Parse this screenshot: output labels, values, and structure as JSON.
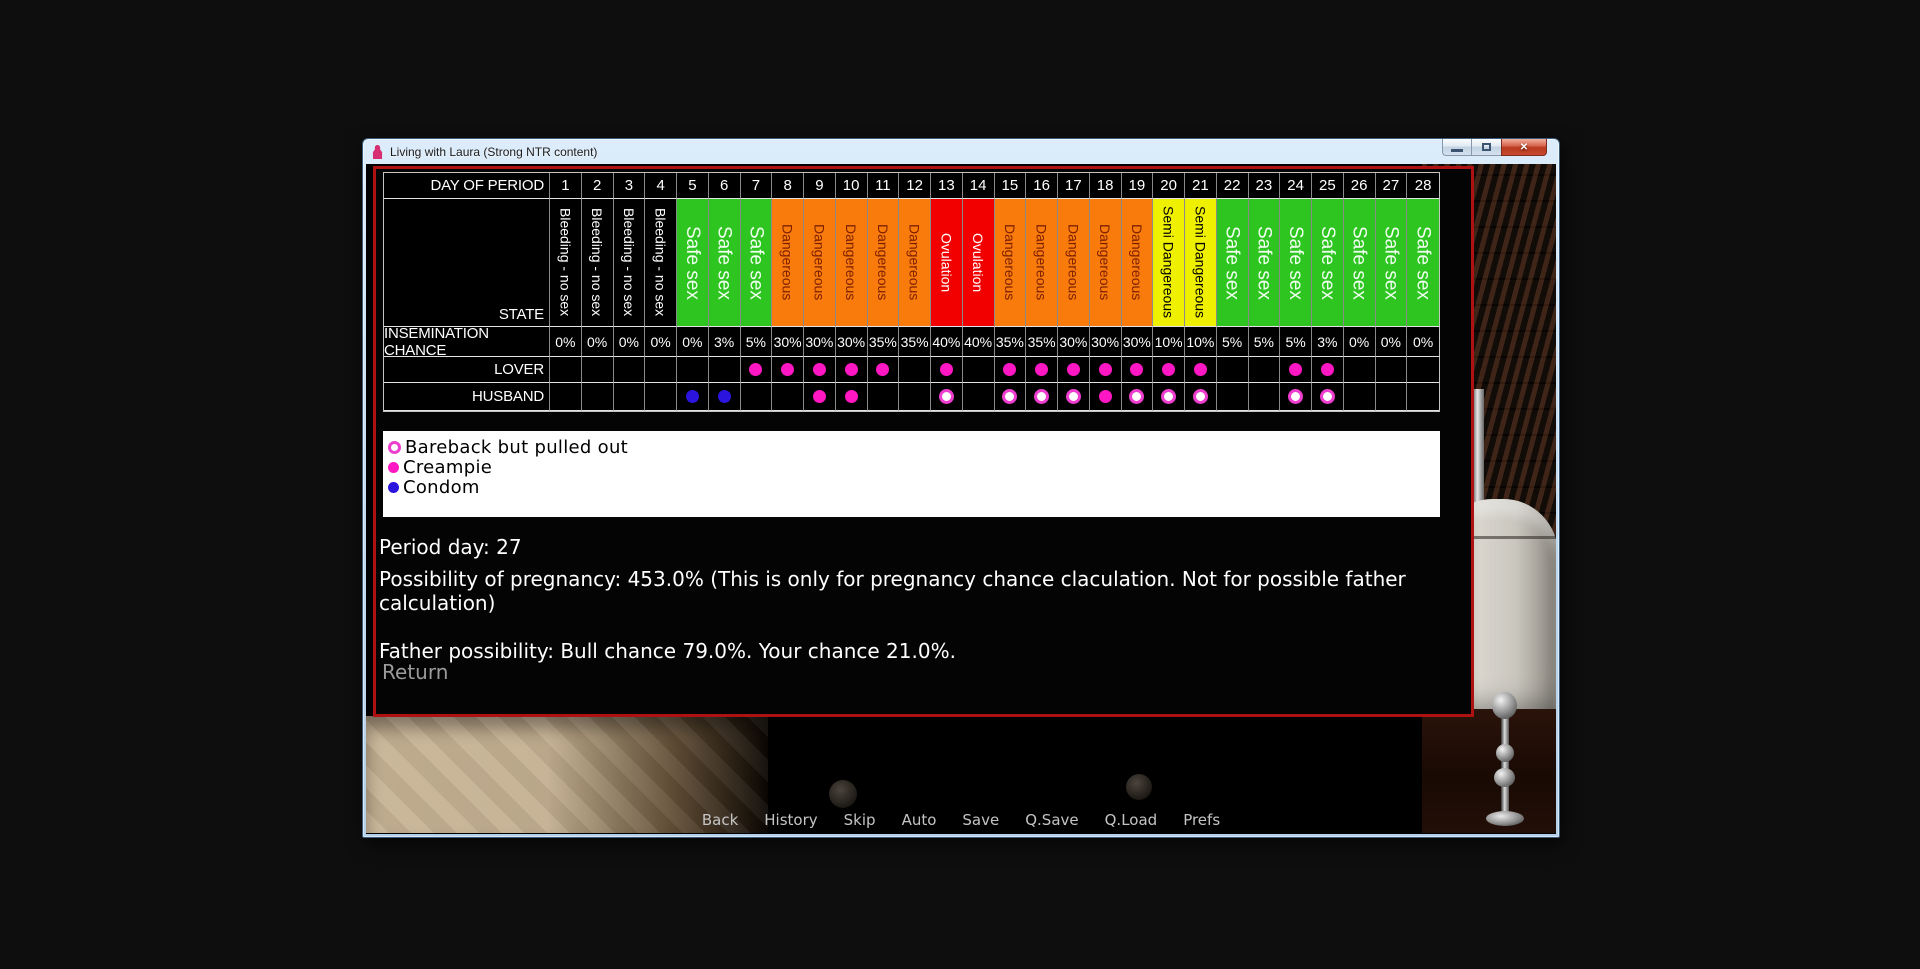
{
  "window": {
    "title": "Living with Laura (Strong NTR content)"
  },
  "chart_data": {
    "type": "table",
    "header_label": "DAY OF PERIOD",
    "days": [
      "1",
      "2",
      "3",
      "4",
      "5",
      "6",
      "7",
      "8",
      "9",
      "10",
      "11",
      "12",
      "13",
      "14",
      "15",
      "16",
      "17",
      "18",
      "19",
      "20",
      "21",
      "22",
      "23",
      "24",
      "25",
      "26",
      "27",
      "28"
    ],
    "row_labels": {
      "state": "STATE",
      "insemination": "INSEMINATION CHANCE",
      "lover": "LOVER",
      "husband": "HUSBAND"
    },
    "day_states": [
      "bleeding",
      "bleeding",
      "bleeding",
      "bleeding",
      "safe",
      "safe",
      "safe",
      "dangerous",
      "dangerous",
      "dangerous",
      "dangerous",
      "dangerous",
      "ovulation",
      "ovulation",
      "dangerous",
      "dangerous",
      "dangerous",
      "dangerous",
      "dangerous",
      "semi",
      "semi",
      "safe",
      "safe",
      "safe",
      "safe",
      "safe",
      "safe",
      "safe"
    ],
    "state_styles": {
      "bleeding": {
        "label": "Bleeding - no sex",
        "bg": "#000000",
        "fg": "#ffffff",
        "big": false
      },
      "safe": {
        "label": "Safe sex",
        "bg": "#2ec520",
        "fg": "#f0fff0",
        "big": true
      },
      "dangerous": {
        "label": "Dangereous",
        "bg": "#f87b0c",
        "fg": "#7e2000",
        "big": false
      },
      "ovulation": {
        "label": "Ovulation",
        "bg": "#f20000",
        "fg": "#ffffff",
        "big": false
      },
      "semi": {
        "label": "Semi Dangereous",
        "bg": "#efef00",
        "fg": "#000000",
        "big": false
      }
    },
    "insemination_chance": [
      "0%",
      "0%",
      "0%",
      "0%",
      "0%",
      "3%",
      "5%",
      "30%",
      "30%",
      "30%",
      "35%",
      "35%",
      "40%",
      "40%",
      "35%",
      "35%",
      "30%",
      "30%",
      "30%",
      "10%",
      "10%",
      "5%",
      "5%",
      "5%",
      "3%",
      "0%",
      "0%",
      "0%"
    ],
    "lover_markers": {
      "7": "creampie",
      "8": "creampie",
      "9": "creampie",
      "10": "creampie",
      "11": "creampie",
      "13": "creampie",
      "15": "creampie",
      "16": "creampie",
      "17": "creampie",
      "18": "creampie",
      "19": "creampie",
      "20": "creampie",
      "21": "creampie",
      "24": "creampie",
      "25": "creampie"
    },
    "husband_markers": {
      "5": "condom",
      "6": "condom",
      "9": "creampie",
      "10": "creampie",
      "13": "bareback",
      "15": "bareback",
      "16": "bareback",
      "17": "bareback",
      "18": "creampie",
      "19": "bareback",
      "20": "bareback",
      "21": "bareback",
      "24": "bareback",
      "25": "bareback"
    },
    "marker_styles": {
      "creampie": {
        "type": "solid",
        "color": "#ff17c3"
      },
      "condom": {
        "type": "solid",
        "color": "#2b14dd"
      },
      "bareback": {
        "type": "ring",
        "color": "#ee3ecf"
      }
    }
  },
  "legend": {
    "items": [
      {
        "marker": "bareback",
        "label": "Bareback but pulled out"
      },
      {
        "marker": "creampie",
        "label": "Creampie"
      },
      {
        "marker": "condom",
        "label": "Condom"
      }
    ]
  },
  "info": {
    "period_day": "Period day: 27",
    "pregnancy": "Possibility of pregnancy: 453.0% (This is only for pregnancy chance claculation. Not for possible father calculation)",
    "father": "Father possibility: Bull chance 79.0%. Your chance 21.0%.",
    "return_label": "Return"
  },
  "quick_menu": [
    "Back",
    "History",
    "Skip",
    "Auto",
    "Save",
    "Q.Save",
    "Q.Load",
    "Prefs"
  ],
  "colors": {
    "chart_border": "#ad1111",
    "titlebar_blue": "#cfe3f6",
    "creampie": "#ff17c3",
    "condom": "#2b14dd",
    "bareback": "#ee3ecf"
  }
}
